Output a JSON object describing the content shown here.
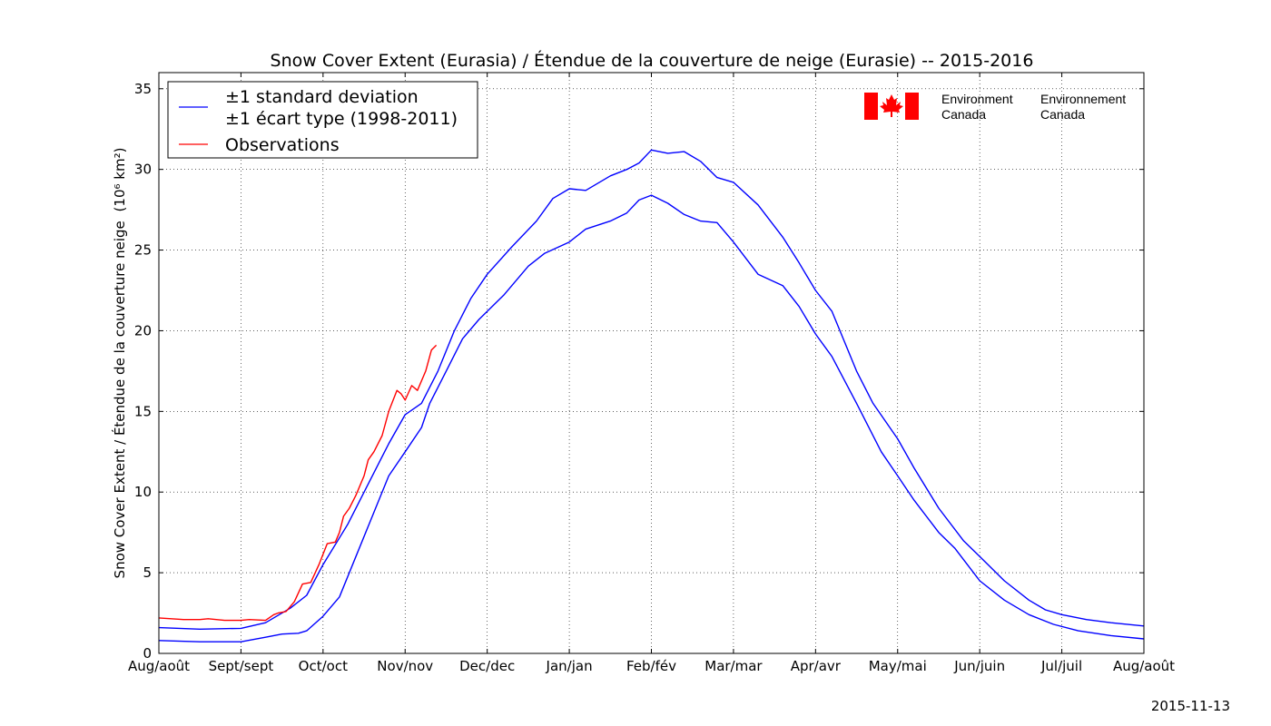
{
  "chart_data": {
    "type": "line",
    "title": "Snow Cover Extent (Eurasia) / Étendue de la couverture de neige (Eurasie) -- 2015-2016",
    "xlabel": "",
    "ylabel": "Snow Cover Extent / Étendue de la couverture neige",
    "ylabel_units": "(10⁶ km²)",
    "ylim": [
      0,
      36
    ],
    "yticks": [
      0,
      5,
      10,
      15,
      20,
      25,
      30,
      35
    ],
    "ytick_labels": [
      "0",
      "5",
      "10",
      "15",
      "20",
      "25",
      "30",
      "35"
    ],
    "xlim": [
      0,
      12
    ],
    "xticks": [
      0,
      1,
      2,
      3,
      4,
      5,
      6,
      7,
      8,
      9,
      10,
      11,
      12
    ],
    "xtick_labels": [
      "Aug/août",
      "Sept/sept",
      "Oct/oct",
      "Nov/nov",
      "Dec/dec",
      "Jan/jan",
      "Feb/fév",
      "Mar/mar",
      "Apr/avr",
      "May/mai",
      "Jun/juin",
      "Jul/juil",
      "Aug/août"
    ],
    "grid": true,
    "legend_placement": "top-left",
    "series": [
      {
        "name": "±1 standard deviation\n±1 écart type (1998-2011)",
        "color": "#0000ff",
        "role": "upper",
        "x": [
          0,
          0.5,
          1,
          1.3,
          1.6,
          1.8,
          2,
          2.3,
          2.6,
          2.8,
          3,
          3.2,
          3.4,
          3.6,
          3.8,
          4,
          4.3,
          4.6,
          4.8,
          5,
          5.2,
          5.5,
          5.7,
          5.85,
          6,
          6.2,
          6.4,
          6.6,
          6.8,
          7,
          7.3,
          7.6,
          7.8,
          8,
          8.2,
          8.5,
          8.7,
          9,
          9.2,
          9.5,
          9.8,
          10,
          10.3,
          10.6,
          10.8,
          11,
          11.3,
          11.6,
          12
        ],
        "values": [
          1.6,
          1.5,
          1.55,
          1.9,
          2.8,
          3.6,
          5.5,
          8,
          11,
          13,
          14.8,
          15.5,
          17.5,
          20,
          22,
          23.5,
          25.2,
          26.8,
          28.2,
          28.8,
          28.7,
          29.6,
          30,
          30.4,
          31.2,
          31,
          31.1,
          30.5,
          29.5,
          29.2,
          27.8,
          25.8,
          24.2,
          22.5,
          21.2,
          17.5,
          15.5,
          13.3,
          11.5,
          9,
          7,
          6,
          4.5,
          3.3,
          2.7,
          2.4,
          2.1,
          1.9,
          1.7
        ]
      },
      {
        "name": "",
        "color": "#0000ff",
        "role": "lower",
        "x": [
          0,
          0.5,
          1,
          1.3,
          1.5,
          1.7,
          1.8,
          2,
          2.2,
          2.4,
          2.6,
          2.8,
          3,
          3.2,
          3.3,
          3.5,
          3.7,
          3.9,
          4.2,
          4.5,
          4.7,
          5,
          5.2,
          5.5,
          5.7,
          5.85,
          6,
          6.2,
          6.4,
          6.6,
          6.8,
          7,
          7.3,
          7.6,
          7.8,
          8,
          8.2,
          8.5,
          8.8,
          9,
          9.2,
          9.5,
          9.7,
          10,
          10.3,
          10.6,
          10.9,
          11.2,
          11.6,
          12
        ],
        "values": [
          0.8,
          0.72,
          0.72,
          1.0,
          1.2,
          1.25,
          1.4,
          2.3,
          3.5,
          6,
          8.5,
          11,
          12.5,
          14,
          15.5,
          17.5,
          19.5,
          20.7,
          22.2,
          24,
          24.8,
          25.5,
          26.3,
          26.8,
          27.3,
          28.1,
          28.4,
          27.9,
          27.2,
          26.8,
          26.7,
          25.5,
          23.5,
          22.8,
          21.5,
          19.8,
          18.4,
          15.5,
          12.5,
          11,
          9.5,
          7.5,
          6.5,
          4.5,
          3.3,
          2.4,
          1.8,
          1.4,
          1.1,
          0.9
        ]
      },
      {
        "name": "Observations",
        "color": "#ff0000",
        "x": [
          0,
          0.3,
          0.5,
          0.6,
          0.8,
          1,
          1.1,
          1.3,
          1.4,
          1.45,
          1.55,
          1.65,
          1.75,
          1.85,
          1.95,
          2.05,
          2.15,
          2.2,
          2.25,
          2.32,
          2.4,
          2.5,
          2.55,
          2.62,
          2.72,
          2.8,
          2.9,
          2.95,
          3,
          3.08,
          3.15,
          3.25,
          3.32,
          3.38
        ],
        "values": [
          2.2,
          2.1,
          2.1,
          2.15,
          2.05,
          2.05,
          2.1,
          2.05,
          2.4,
          2.5,
          2.6,
          3.2,
          4.3,
          4.4,
          5.5,
          6.8,
          6.9,
          7.5,
          8.5,
          9.0,
          9.8,
          11.0,
          12.0,
          12.5,
          13.5,
          15.0,
          16.3,
          16.1,
          15.7,
          16.6,
          16.3,
          17.5,
          18.8,
          19.1
        ]
      }
    ],
    "legend": [
      {
        "label_line1": "±1 standard deviation",
        "label_line2": "±1 écart type (1998-2011)",
        "color": "#0000ff"
      },
      {
        "label_line1": "Observations",
        "label_line2": "",
        "color": "#ff0000"
      }
    ]
  },
  "logo": {
    "en_line1": "Environment",
    "en_line2": "Canada",
    "fr_line1": "Environnement",
    "fr_line2": "Canada",
    "flag_color": "#ff0000"
  },
  "footer": {
    "date": "2015-11-13"
  }
}
